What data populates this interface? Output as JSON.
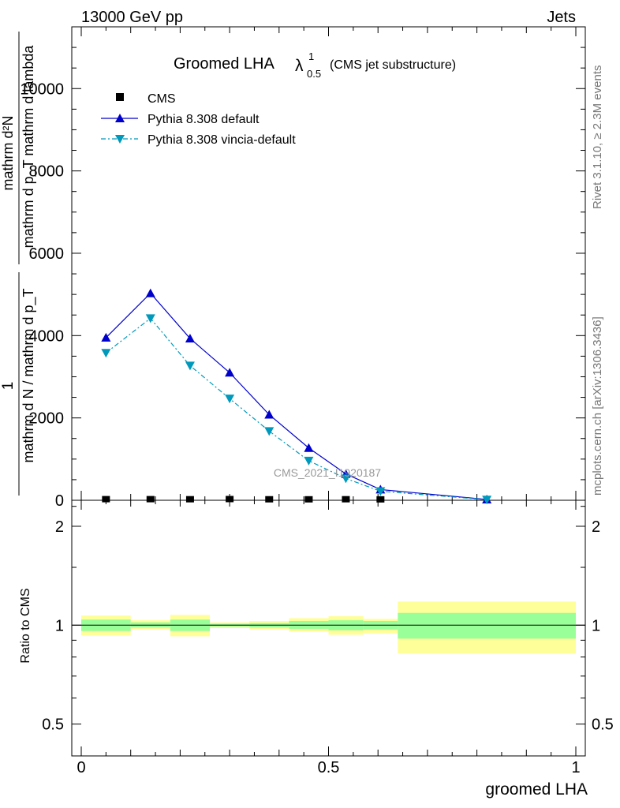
{
  "header": {
    "left": "13000 GeV pp",
    "right": "Jets"
  },
  "side_text": {
    "rivet": "Rivet 3.1.10, ≥ 2.3M events",
    "mcplots": "mcplots.cern.ch [arXiv:1306.3436]"
  },
  "title": {
    "main": "Groomed LHA",
    "symbol": "λ",
    "sup": "1",
    "sub": "0.5",
    "note": "(CMS jet substructure)"
  },
  "watermark": "CMS_2021_I1920187",
  "upper_ylabel": {
    "numerator": "1",
    "denominator": "mathrm d N / mathrm d p_T",
    "rhs_numerator": "mathrm d²N",
    "rhs_denominator": "mathrm d p_T mathrm d lambda"
  },
  "lower_ylabel": "Ratio to CMS",
  "xlabel": "groomed LHA",
  "colors": {
    "pythia_default": "#0000cc",
    "pythia_vincia": "#0099bb",
    "band_inner": "#99ff99",
    "band_outer": "#ffff99",
    "cms": "#000000"
  },
  "chart_data": [
    {
      "type": "line",
      "panel": "main",
      "xlim": [
        0,
        1
      ],
      "ylim": [
        0,
        11500
      ],
      "yticks": [
        0,
        2000,
        4000,
        6000,
        8000,
        10000
      ],
      "ytick_labels": [
        "0",
        "2000",
        "4000",
        "6000",
        "8000",
        "10000"
      ],
      "legend_position": "top-left",
      "series": [
        {
          "name": "CMS",
          "marker": "square",
          "x": [
            0.05,
            0.14,
            0.22,
            0.3,
            0.38,
            0.46,
            0.535,
            0.605
          ],
          "values": [
            8,
            8,
            6,
            10,
            5,
            4,
            6,
            3
          ]
        },
        {
          "name": "Pythia 8.308 default",
          "marker": "triangle-up",
          "line": "solid",
          "x": [
            0.05,
            0.14,
            0.22,
            0.3,
            0.38,
            0.46,
            0.535,
            0.605,
            0.82
          ],
          "values": [
            3950,
            5030,
            3930,
            3100,
            2080,
            1270,
            640,
            260,
            20
          ]
        },
        {
          "name": "Pythia 8.308 vincia-default",
          "marker": "triangle-down",
          "line": "dash-dot",
          "x": [
            0.05,
            0.14,
            0.22,
            0.3,
            0.38,
            0.46,
            0.535,
            0.605,
            0.82
          ],
          "values": [
            3580,
            4420,
            3270,
            2470,
            1680,
            960,
            530,
            220,
            15
          ]
        }
      ]
    },
    {
      "type": "area",
      "panel": "ratio",
      "xlim": [
        0,
        1
      ],
      "ylim": [
        0.4,
        2.4
      ],
      "log_y": true,
      "yticks": [
        0.5,
        1,
        2
      ],
      "ytick_labels": [
        "0.5",
        "1",
        "2"
      ],
      "xticks": [
        0,
        0.5,
        1
      ],
      "xtick_labels": [
        "0",
        "0.5",
        "1"
      ],
      "bins": [
        {
          "x0": 0.0,
          "x1": 0.1,
          "inner": [
            0.96,
            1.04
          ],
          "outer": [
            0.93,
            1.07
          ]
        },
        {
          "x0": 0.1,
          "x1": 0.18,
          "inner": [
            0.985,
            1.02
          ],
          "outer": [
            0.97,
            1.035
          ]
        },
        {
          "x0": 0.18,
          "x1": 0.26,
          "inner": [
            0.96,
            1.04
          ],
          "outer": [
            0.925,
            1.075
          ]
        },
        {
          "x0": 0.26,
          "x1": 0.34,
          "inner": [
            0.99,
            1.01
          ],
          "outer": [
            0.98,
            1.02
          ]
        },
        {
          "x0": 0.34,
          "x1": 0.42,
          "inner": [
            0.985,
            1.015
          ],
          "outer": [
            0.97,
            1.03
          ]
        },
        {
          "x0": 0.42,
          "x1": 0.5,
          "inner": [
            0.975,
            1.03
          ],
          "outer": [
            0.955,
            1.05
          ]
        },
        {
          "x0": 0.5,
          "x1": 0.57,
          "inner": [
            0.965,
            1.035
          ],
          "outer": [
            0.935,
            1.065
          ]
        },
        {
          "x0": 0.57,
          "x1": 0.64,
          "inner": [
            0.97,
            1.03
          ],
          "outer": [
            0.945,
            1.045
          ]
        },
        {
          "x0": 0.64,
          "x1": 1.0,
          "inner": [
            0.91,
            1.09
          ],
          "outer": [
            0.82,
            1.18
          ]
        }
      ],
      "reference_line": 1
    }
  ]
}
